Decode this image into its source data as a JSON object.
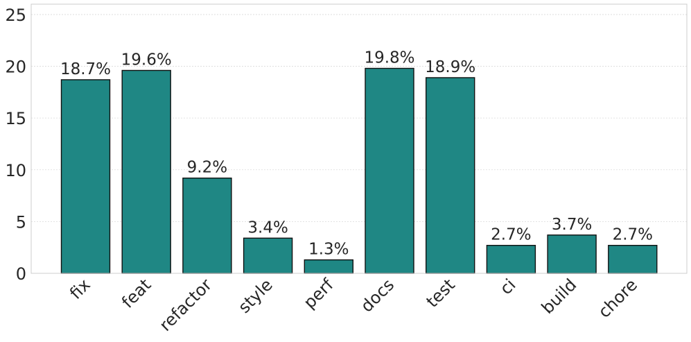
{
  "chart_data": {
    "type": "bar",
    "title": "",
    "xlabel": "",
    "ylabel": "",
    "categories": [
      "fix",
      "feat",
      "refactor",
      "style",
      "perf",
      "docs",
      "test",
      "ci",
      "build",
      "chore"
    ],
    "values": [
      18.7,
      19.6,
      9.2,
      3.4,
      1.3,
      19.8,
      18.9,
      2.7,
      3.7,
      2.7
    ],
    "data_labels": [
      "18.7%",
      "19.6%",
      "9.2%",
      "3.4%",
      "1.3%",
      "19.8%",
      "18.9%",
      "2.7%",
      "3.7%",
      "2.7%"
    ],
    "ylim": [
      0,
      26
    ],
    "yticks": [
      0,
      5,
      10,
      15,
      20,
      25
    ],
    "grid": "horizontal",
    "legend": "none",
    "colors": {
      "bar": "#1f8784",
      "bar_edge": "#111111",
      "grid": "#d9d9d9",
      "frame": "#cccccc"
    }
  }
}
